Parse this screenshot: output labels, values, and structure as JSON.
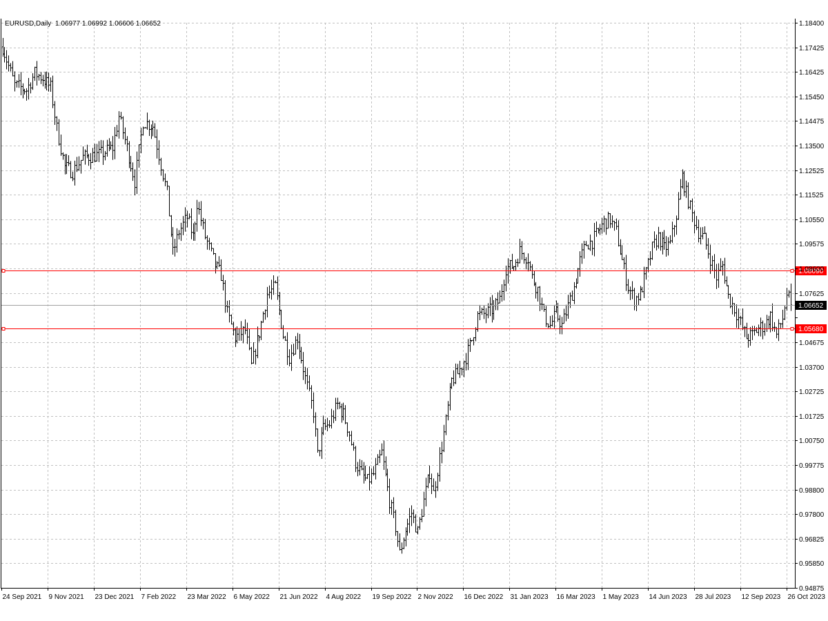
{
  "header": {
    "symbol": "EURUSD,Daily",
    "ohlc": "1.06977 1.06992 1.06606 1.06652"
  },
  "colors": {
    "background": "#ffffff",
    "grid": "#c0c0c0",
    "bars": "#000000",
    "line": "#ff0000",
    "current_price_bg": "#000000",
    "current_price_line": "#a0a0a0"
  },
  "chart_data": {
    "type": "bar",
    "bar_style": "ohlc",
    "symbol": "EURUSD",
    "timeframe": "Daily",
    "ylim": [
      0.94875,
      1.184
    ],
    "y_ticks": [
      "1.18400",
      "1.17425",
      "1.16425",
      "1.15450",
      "1.14475",
      "1.13500",
      "1.12525",
      "1.11525",
      "1.10550",
      "1.09575",
      "1.08600",
      "1.07625",
      "1.06652",
      "1.04675",
      "1.03700",
      "1.02725",
      "1.01725",
      "1.00750",
      "0.99775",
      "0.98800",
      "0.97800",
      "0.96825",
      "0.95850",
      "0.94875"
    ],
    "x_ticks": [
      "24 Sep 2021",
      "9 Nov 2021",
      "23 Dec 2021",
      "7 Feb 2022",
      "23 Mar 2022",
      "6 May 2022",
      "21 Jun 2022",
      "4 Aug 2022",
      "19 Sep 2022",
      "2 Nov 2022",
      "16 Dec 2022",
      "31 Jan 2023",
      "16 Mar 2023",
      "1 May 2023",
      "14 Jun 2023",
      "28 Jul 2023",
      "12 Sep 2023",
      "26 Oct 2023"
    ],
    "grid": true,
    "horizontal_lines": [
      {
        "price": 1.0809,
        "label": "1.08090"
      },
      {
        "price": 1.0568,
        "label": "1.05680"
      }
    ],
    "current_price": {
      "value": 1.06652,
      "label": "1.06652"
    },
    "price_path": [
      [
        0,
        1.174
      ],
      [
        6,
        1.158
      ],
      [
        12,
        1.156
      ],
      [
        16,
        1.163
      ],
      [
        20,
        1.161
      ],
      [
        24,
        1.157
      ],
      [
        27,
        1.14
      ],
      [
        31,
        1.124
      ],
      [
        35,
        1.122
      ],
      [
        40,
        1.128
      ],
      [
        48,
        1.129
      ],
      [
        55,
        1.132
      ],
      [
        58,
        1.145
      ],
      [
        62,
        1.132
      ],
      [
        66,
        1.118
      ],
      [
        70,
        1.143
      ],
      [
        75,
        1.141
      ],
      [
        82,
        1.113
      ],
      [
        85,
        1.088
      ],
      [
        88,
        1.097
      ],
      [
        92,
        1.103
      ],
      [
        95,
        1.095
      ],
      [
        97,
        1.109
      ],
      [
        101,
        1.095
      ],
      [
        106,
        1.083
      ],
      [
        109,
        1.079
      ],
      [
        112,
        1.063
      ],
      [
        116,
        1.053
      ],
      [
        121,
        1.056
      ],
      [
        124,
        1.041
      ],
      [
        128,
        1.055
      ],
      [
        132,
        1.071
      ],
      [
        136,
        1.074
      ],
      [
        140,
        1.054
      ],
      [
        143,
        1.045
      ],
      [
        147,
        1.053
      ],
      [
        151,
        1.036
      ],
      [
        155,
        1.022
      ],
      [
        157,
        1.004
      ],
      [
        160,
        1.015
      ],
      [
        163,
        1.017
      ],
      [
        167,
        1.025
      ],
      [
        170,
        1.021
      ],
      [
        173,
        1.013
      ],
      [
        176,
        1.001
      ],
      [
        179,
        0.996
      ],
      [
        182,
        0.993
      ],
      [
        185,
        0.996
      ],
      [
        189,
        1.005
      ],
      [
        193,
        0.985
      ],
      [
        196,
        0.974
      ],
      [
        198,
        0.963
      ],
      [
        201,
        0.973
      ],
      [
        204,
        0.98
      ],
      [
        207,
        0.972
      ],
      [
        210,
        0.985
      ],
      [
        213,
        0.997
      ],
      [
        215,
        0.988
      ],
      [
        218,
        1.003
      ],
      [
        221,
        1.018
      ],
      [
        224,
        1.035
      ],
      [
        227,
        1.038
      ],
      [
        231,
        1.045
      ],
      [
        234,
        1.052
      ],
      [
        237,
        1.062
      ],
      [
        241,
        1.063
      ],
      [
        245,
        1.065
      ],
      [
        248,
        1.069
      ],
      [
        251,
        1.082
      ],
      [
        255,
        1.083
      ],
      [
        258,
        1.089
      ],
      [
        262,
        1.086
      ],
      [
        264,
        1.078
      ],
      [
        267,
        1.073
      ],
      [
        270,
        1.062
      ],
      [
        273,
        1.058
      ],
      [
        276,
        1.063
      ],
      [
        279,
        1.058
      ],
      [
        282,
        1.066
      ],
      [
        285,
        1.074
      ],
      [
        288,
        1.085
      ],
      [
        291,
        1.092
      ],
      [
        294,
        1.093
      ],
      [
        297,
        1.097
      ],
      [
        300,
        1.101
      ],
      [
        303,
        1.102
      ],
      [
        306,
        1.097
      ],
      [
        309,
        1.085
      ],
      [
        312,
        1.074
      ],
      [
        315,
        1.069
      ],
      [
        318,
        1.071
      ],
      [
        321,
        1.08
      ],
      [
        324,
        1.09
      ],
      [
        327,
        1.095
      ],
      [
        330,
        1.09
      ],
      [
        333,
        1.092
      ],
      [
        336,
        1.104
      ],
      [
        339,
        1.12
      ],
      [
        341,
        1.113
      ],
      [
        344,
        1.104
      ],
      [
        347,
        1.097
      ],
      [
        350,
        1.094
      ],
      [
        353,
        1.086
      ],
      [
        356,
        1.078
      ],
      [
        359,
        1.083
      ],
      [
        362,
        1.07
      ],
      [
        365,
        1.065
      ],
      [
        368,
        1.059
      ],
      [
        371,
        1.053
      ],
      [
        374,
        1.054
      ],
      [
        377,
        1.057
      ],
      [
        380,
        1.058
      ],
      [
        383,
        1.062
      ],
      [
        386,
        1.054
      ],
      [
        389,
        1.061
      ],
      [
        391,
        1.071
      ],
      [
        393,
        1.067
      ]
    ]
  }
}
